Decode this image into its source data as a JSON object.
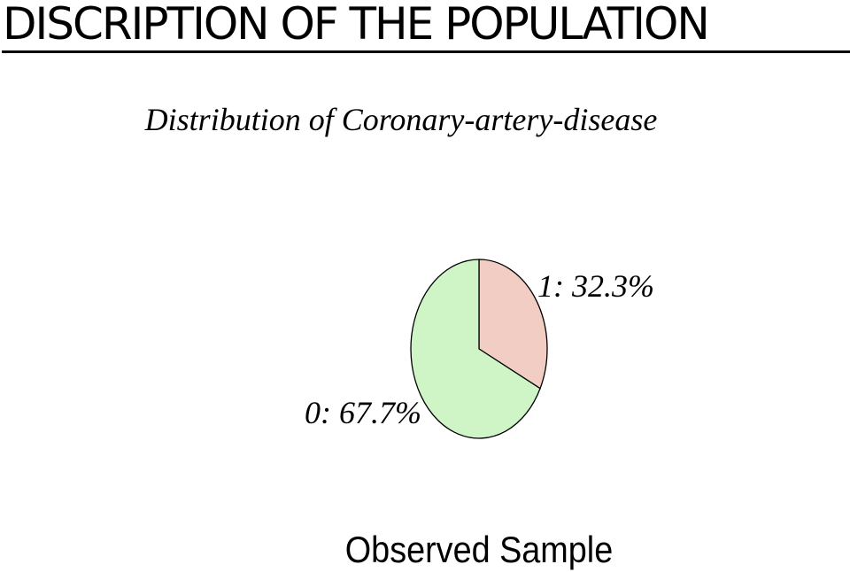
{
  "slide": {
    "title": "DISCRIPTION OF THE POPULATION"
  },
  "chart_data": {
    "type": "pie",
    "title": "Distribution of Coronary-artery-disease",
    "footer": "Observed Sample",
    "slices": [
      {
        "label": "1",
        "percent": 32.3,
        "text": "1: 32.3%",
        "color": "#f2cdc4"
      },
      {
        "label": "0",
        "percent": 67.7,
        "text": "0: 67.7%",
        "color": "#cff5c7"
      }
    ],
    "start_angle": "12 o'clock",
    "direction": "clockwise",
    "edge_color": "#000000"
  }
}
